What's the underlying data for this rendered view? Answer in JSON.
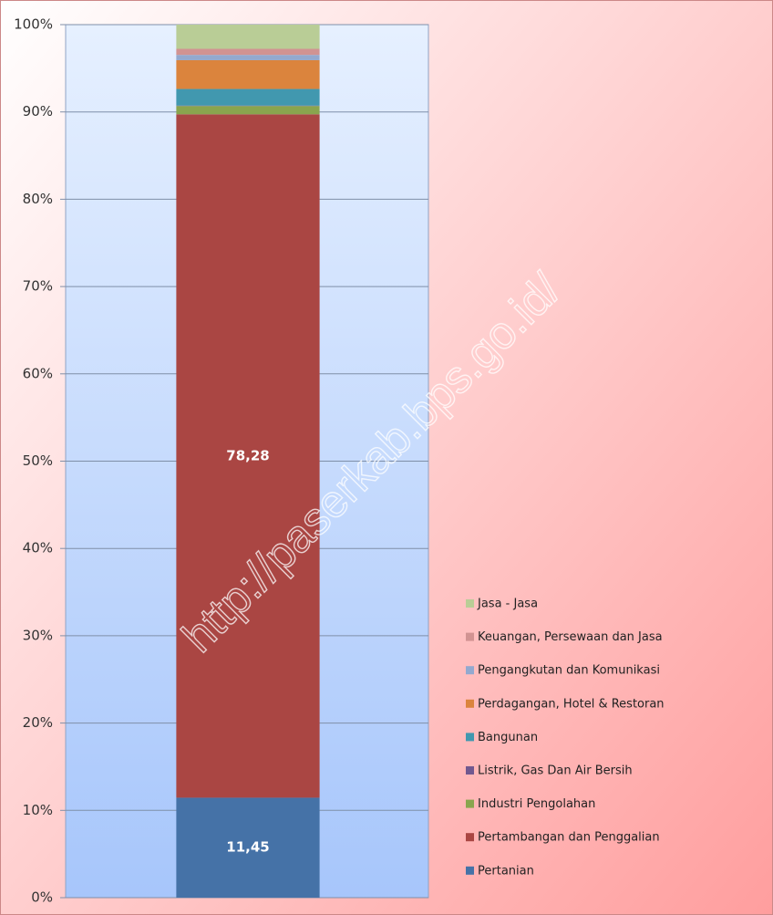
{
  "chart_data": {
    "type": "stacked_bar",
    "categories": [
      null
    ],
    "ylim": [
      0,
      100
    ],
    "yticks": [
      {
        "value": 0,
        "label": "0%"
      },
      {
        "value": 10,
        "label": "10%"
      },
      {
        "value": 20,
        "label": "20%"
      },
      {
        "value": 30,
        "label": "30%"
      },
      {
        "value": 40,
        "label": "40%"
      },
      {
        "value": 50,
        "label": "50%"
      },
      {
        "value": 60,
        "label": "60%"
      },
      {
        "value": 70,
        "label": "70%"
      },
      {
        "value": 80,
        "label": "80%"
      },
      {
        "value": 90,
        "label": "90%"
      },
      {
        "value": 100,
        "label": "100%"
      }
    ],
    "grid": true,
    "legend": "right",
    "watermark": "http://paserkab.bps.go.id/",
    "series": [
      {
        "name": "Pertanian",
        "color": "#4572a7",
        "values": [
          11.45
        ],
        "value_labels": [
          "11,45"
        ]
      },
      {
        "name": "Pertambangan dan Penggalian",
        "color": "#aa4643",
        "values": [
          78.28
        ],
        "value_labels": [
          "78,28"
        ]
      },
      {
        "name": "Industri Pengolahan",
        "color": "#89a54e",
        "values": [
          0.95
        ]
      },
      {
        "name": "Listrik, Gas Dan Air Bersih",
        "color": "#71588f",
        "values": [
          0.05
        ]
      },
      {
        "name": "Bangunan",
        "color": "#4198af",
        "values": [
          1.9
        ]
      },
      {
        "name": "Perdagangan, Hotel & Restoran",
        "color": "#db843d",
        "values": [
          3.3
        ]
      },
      {
        "name": "Pengangkutan dan Komunikasi",
        "color": "#93a9cf",
        "values": [
          0.6
        ]
      },
      {
        "name": "Keuangan, Persewaan dan Jasa",
        "color": "#d19392",
        "values": [
          0.7
        ]
      },
      {
        "name": "Jasa - Jasa",
        "color": "#b9cd96",
        "values": [
          2.77
        ]
      }
    ]
  }
}
